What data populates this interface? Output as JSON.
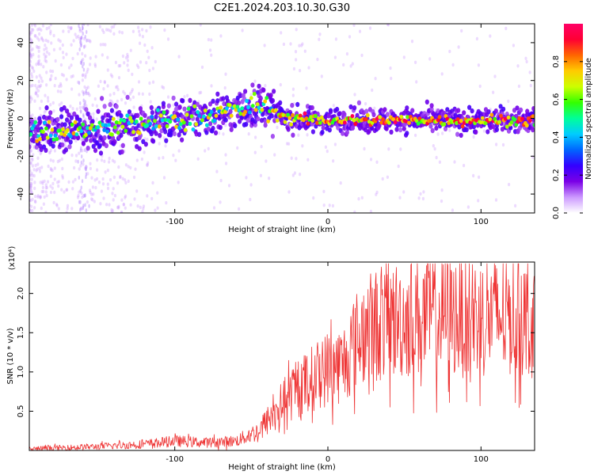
{
  "title": "C2E1.2024.203.10.30.G30",
  "chart_data": [
    {
      "type": "heatmap",
      "xlabel": "Height of straight line (km)",
      "ylabel": "Frequency (Hz)",
      "xlim": [
        -195,
        135
      ],
      "ylim": [
        -50,
        50
      ],
      "xticks": [
        -100,
        0,
        100
      ],
      "yticks": [
        -40,
        -20,
        0,
        20,
        40
      ],
      "colorbar": {
        "label": "Normalized spectral amplitude",
        "range": [
          0.0,
          1.0
        ],
        "ticks": [
          "0.0",
          "0.2",
          "0.4",
          "0.6",
          "0.8"
        ],
        "colors": [
          "#ffffff",
          "#cc99ff",
          "#7a00e6",
          "#3300ff",
          "#0066ff",
          "#00ccff",
          "#00ff99",
          "#33ff00",
          "#ccff00",
          "#ffcc00",
          "#ff6600",
          "#ff0033",
          "#ff0066"
        ]
      },
      "ridge": {
        "x": [
          -195,
          -175,
          -155,
          -130,
          -110,
          -90,
          -70,
          -55,
          -42,
          -35,
          -25,
          -10,
          0,
          20,
          40,
          60,
          80,
          100,
          120,
          135
        ],
        "frequency": [
          -7,
          -7,
          -6,
          -4,
          -2,
          0,
          3,
          5,
          7,
          3,
          0,
          -1,
          -1,
          -1,
          -1,
          -1,
          -1,
          -1,
          -1,
          -1
        ]
      }
    },
    {
      "type": "line",
      "xlabel": "Height of straight line (km)",
      "ylabel": "SNR (10 * v/v)",
      "yscale_note": "(x10⁴)",
      "xlim": [
        -195,
        135
      ],
      "ylim": [
        0,
        2.4
      ],
      "xticks": [
        -100,
        0,
        100
      ],
      "yticks": [
        "0.5",
        "1.0",
        "1.5",
        "2.0"
      ],
      "color": "#ee3333",
      "trend": {
        "x": [
          -195,
          -150,
          -120,
          -100,
          -80,
          -60,
          -45,
          -30,
          -15,
          0,
          10,
          15,
          25,
          40,
          60,
          80,
          100,
          120,
          135
        ],
        "snr": [
          0.02,
          0.05,
          0.08,
          0.12,
          0.1,
          0.12,
          0.25,
          0.6,
          0.85,
          1.05,
          1.1,
          1.3,
          1.55,
          1.65,
          1.7,
          1.72,
          1.7,
          1.72,
          1.7
        ]
      }
    }
  ]
}
